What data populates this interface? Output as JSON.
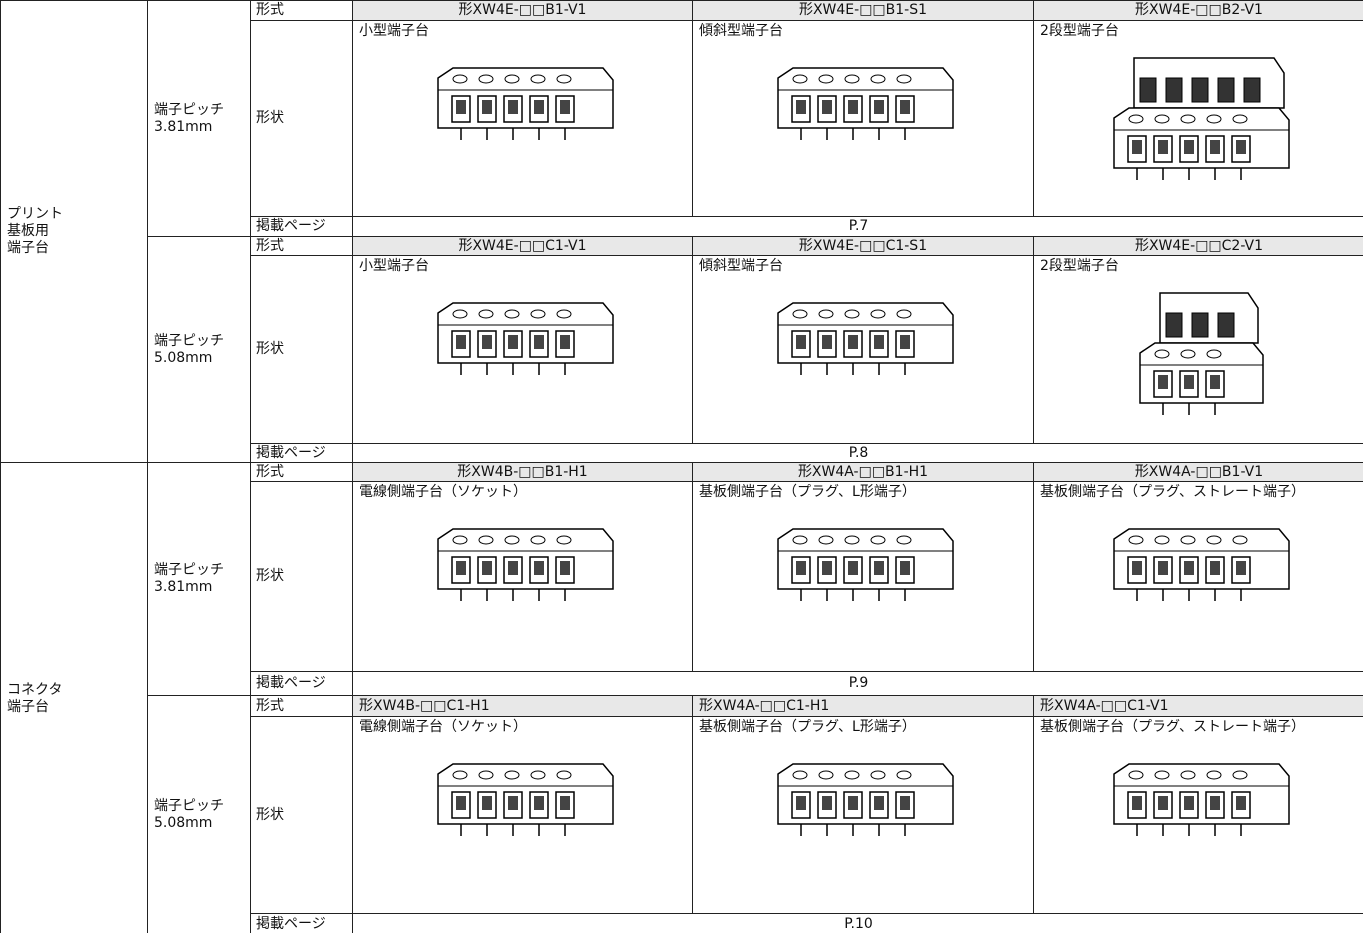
{
  "sections": [
    {
      "category": [
        "プリント",
        "基板用",
        "端子台"
      ],
      "groups": [
        {
          "pitch": [
            "端子ピッチ",
            "3.81mm"
          ],
          "form_label": "形式",
          "models": [
            "形XW4E-□□B1-V1",
            "形XW4E-□□B1-S1",
            "形XW4E-□□B2-V1"
          ],
          "shape_label": "形状",
          "shapes": [
            "小型端子台",
            "傾斜型端子台",
            "2段型端子台"
          ],
          "page_label": "掲載ページ",
          "page": "P.7"
        },
        {
          "pitch": [
            "端子ピッチ",
            "5.08mm"
          ],
          "form_label": "形式",
          "models": [
            "形XW4E-□□C1-V1",
            "形XW4E-□□C1-S1",
            "形XW4E-□□C2-V1"
          ],
          "shape_label": "形状",
          "shapes": [
            "小型端子台",
            "傾斜型端子台",
            "2段型端子台"
          ],
          "page_label": "掲載ページ",
          "page": "P.8"
        }
      ]
    },
    {
      "category": [
        "コネクタ",
        "端子台"
      ],
      "groups": [
        {
          "pitch": [
            "端子ピッチ",
            "3.81mm"
          ],
          "form_label": "形式",
          "models": [
            "形XW4B-□□B1-H1",
            "形XW4A-□□B1-H1",
            "形XW4A-□□B1-V1"
          ],
          "shape_label": "形状",
          "shapes": [
            "電線側端子台（ソケット）",
            "基板側端子台（プラグ、L形端子）",
            "基板側端子台（プラグ、ストレート端子）"
          ],
          "page_label": "掲載ページ",
          "page": "P.9"
        },
        {
          "pitch": [
            "端子ピッチ",
            "5.08mm"
          ],
          "form_label": "形式",
          "models": [
            "形XW4B-□□C1-H1",
            "形XW4A-□□C1-H1",
            "形XW4A-□□C1-V1"
          ],
          "shape_label": "形状",
          "shapes": [
            "電線側端子台（ソケット）",
            "基板側端子台（プラグ、L形端子）",
            "基板側端子台（プラグ、ストレート端子）"
          ],
          "page_label": "掲載ページ",
          "page": "P.10"
        }
      ]
    }
  ]
}
